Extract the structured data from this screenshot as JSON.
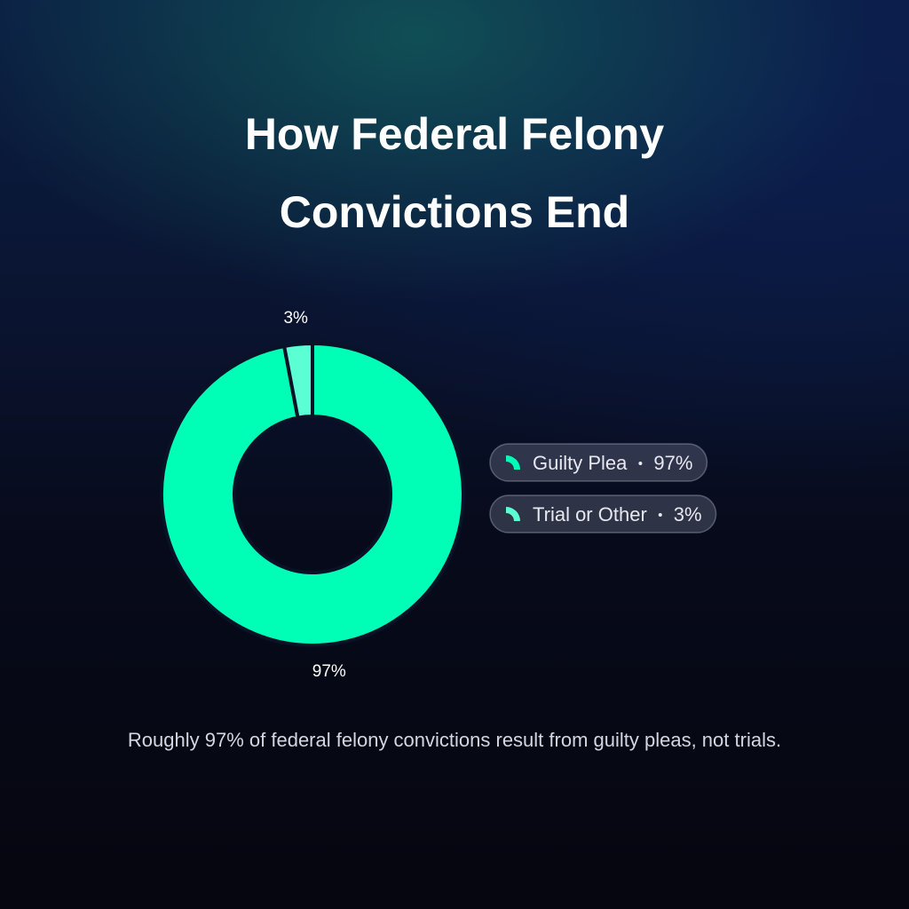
{
  "chart_data": {
    "type": "donut",
    "title": "How Federal Felony Convictions End",
    "categories": [
      "Guilty Plea",
      "Trial or Other"
    ],
    "values": [
      97,
      3
    ],
    "value_labels": [
      "97%",
      "3%"
    ],
    "colors": [
      "#00ffb6",
      "#5cffd4"
    ],
    "caption": "Roughly 97% of federal felony convictions result from guilty pleas, not trials."
  }
}
